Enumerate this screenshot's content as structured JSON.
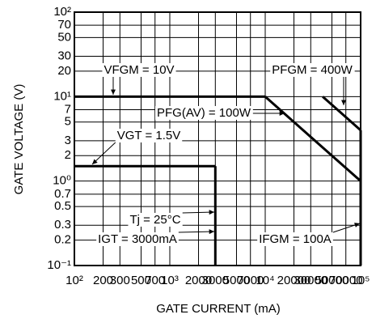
{
  "chart_data": {
    "type": "line",
    "x_label": "GATE CURRENT  (mA)",
    "y_label": "GATE VOLTAGE  (V)",
    "log_x": true,
    "log_y": true,
    "grid": true,
    "color": "#000000",
    "xlim": [
      100,
      100000
    ],
    "ylim": [
      0.1,
      100
    ],
    "xticks": [
      {
        "value": 100,
        "label": "10²"
      },
      200,
      300,
      500,
      700,
      {
        "value": 1000,
        "label": "10³"
      },
      2000,
      3000,
      5000,
      7000,
      {
        "value": 10000,
        "label": "10⁴"
      },
      20000,
      30000,
      50000,
      70000,
      {
        "value": 100000,
        "label": "10⁵"
      }
    ],
    "yticks": [
      {
        "value": 0.1,
        "label": "10⁻¹"
      },
      0.2,
      0.3,
      0.5,
      0.7,
      {
        "value": 1,
        "label": "10⁰"
      },
      2,
      3,
      5,
      7,
      {
        "value": 10,
        "label": "10¹"
      },
      20,
      30,
      50,
      70,
      {
        "value": 100,
        "label": "10²"
      }
    ],
    "series": [
      {
        "name": "VFGM = 10V",
        "x": [
          100,
          10000
        ],
        "values": [
          10,
          10
        ]
      },
      {
        "name": "PFGM = 400W",
        "x": [
          40000,
          100000
        ],
        "values": [
          10,
          4
        ]
      },
      {
        "name": "PFG(AV) = 100W",
        "x": [
          10000,
          100000
        ],
        "values": [
          10,
          1
        ]
      },
      {
        "name": "VGT = 1.5V",
        "x": [
          100,
          3000
        ],
        "values": [
          1.5,
          1.5
        ]
      },
      {
        "name": "IGT = 3000mA",
        "x": [
          3000,
          3000
        ],
        "values": [
          1.5,
          0.1
        ]
      },
      {
        "name": "IFGM = 100A",
        "x": [
          100000,
          100000
        ],
        "values": [
          0.1,
          4
        ]
      }
    ],
    "annotations": [
      "Tj = 25°C"
    ]
  }
}
